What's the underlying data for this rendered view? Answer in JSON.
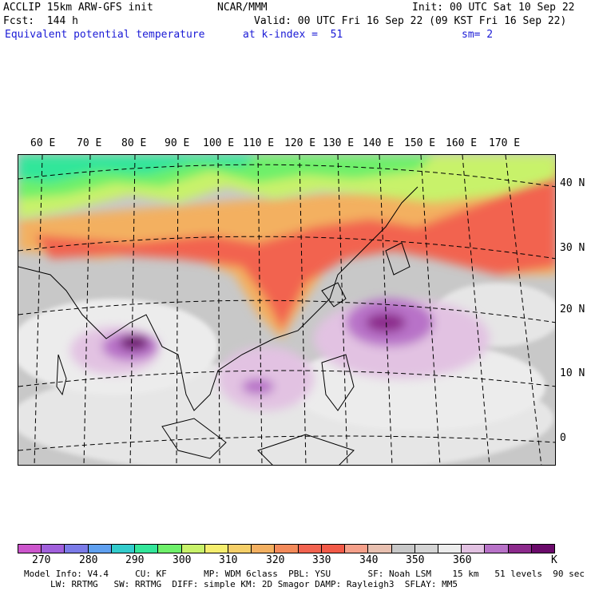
{
  "header": {
    "left_line1": "ACCLIP 15km ARW-GFS init",
    "left_line2": "Fcst:  144 h",
    "left_line3": "Equivalent potential temperature",
    "center_line1": "NCAR/MMM",
    "init": "Init: 00 UTC Sat 10 Sep 22",
    "valid": "Valid: 00 UTC Fri 16 Sep 22 (09 KST Fri 16 Sep 22)",
    "k_index": "at k-index =  51",
    "smoothing": "sm= 2"
  },
  "map": {
    "lon_labels": [
      "60 E",
      "70 E",
      "80 E",
      "90 E",
      "100 E",
      "110 E",
      "120 E",
      "130 E",
      "140 E",
      "150 E",
      "160 E",
      "170 E"
    ],
    "lat_labels": [
      "40 N",
      "30 N",
      "20 N",
      "10 N",
      "0"
    ]
  },
  "colorbar": {
    "colors": [
      "#cc55cc",
      "#a160dc",
      "#7b7be8",
      "#5fa0f0",
      "#33cccc",
      "#33e69a",
      "#6ef06a",
      "#c8f26a",
      "#f5ee6e",
      "#f5cf68",
      "#f3b061",
      "#f38a5a",
      "#f26350",
      "#f25a48",
      "#f5a08a",
      "#e8c0b0",
      "#c8c8c8",
      "#d4d4d4",
      "#ececec",
      "#e2c2e2",
      "#b872c8",
      "#8c2a8c",
      "#6a0a6a"
    ],
    "tick_labels": [
      "270",
      "280",
      "290",
      "300",
      "310",
      "320",
      "330",
      "340",
      "350",
      "360"
    ],
    "unit": "K"
  },
  "footer": {
    "line1": "Model Info: V4.4     CU: KF       MP: WDM 6class  PBL: YSU       SF: Noah LSM    15 km   51 levels  90 sec",
    "line2": "LW: RRTMG   SW: RRTMG  DIFF: simple KM: 2D Smagor DAMP: Rayleigh3  SFLAY: MM5"
  }
}
